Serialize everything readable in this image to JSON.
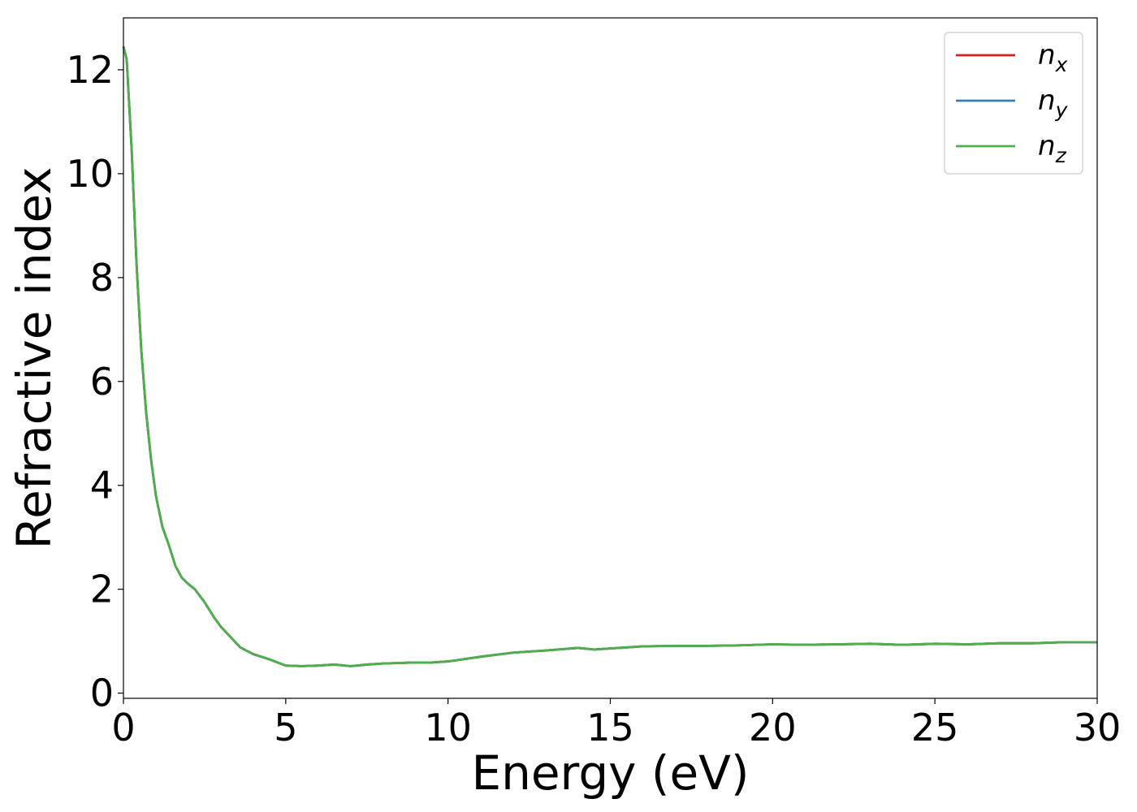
{
  "chart_data": {
    "type": "line",
    "title": "",
    "xlabel": "Energy (eV)",
    "ylabel": "Refractive index",
    "xlim": [
      0,
      30
    ],
    "ylim": [
      -0.1,
      13
    ],
    "xticks": [
      0,
      5,
      10,
      15,
      20,
      25,
      30
    ],
    "yticks": [
      0,
      2,
      4,
      6,
      8,
      10,
      12
    ],
    "grid": false,
    "legend_position": "top-right",
    "series": [
      {
        "name": "n",
        "subscript": "x",
        "color": "#e41a1c",
        "x": [
          0,
          0.1,
          0.25,
          0.4,
          0.55,
          0.7,
          0.85,
          1.0,
          1.2,
          1.4,
          1.6,
          1.8,
          2.0,
          2.2,
          2.5,
          2.8,
          3.0,
          3.3,
          3.6,
          4.0,
          4.5,
          5.0,
          5.5,
          6.0,
          6.5,
          7.0,
          7.5,
          8.0,
          8.5,
          9.0,
          9.5,
          10.0,
          11.0,
          12.0,
          13.0,
          14.0,
          14.5,
          15.0,
          16.0,
          17.0,
          18.0,
          19.0,
          20.0,
          21.0,
          22.0,
          23.0,
          24.0,
          25.0,
          26.0,
          27.0,
          28.0,
          29.0,
          30.0
        ],
        "y": [
          12.45,
          12.2,
          10.5,
          8.3,
          6.6,
          5.4,
          4.5,
          3.8,
          3.2,
          2.85,
          2.45,
          2.22,
          2.1,
          2.0,
          1.75,
          1.45,
          1.28,
          1.08,
          0.88,
          0.75,
          0.65,
          0.53,
          0.52,
          0.53,
          0.55,
          0.52,
          0.55,
          0.57,
          0.58,
          0.59,
          0.59,
          0.61,
          0.7,
          0.78,
          0.82,
          0.87,
          0.84,
          0.86,
          0.9,
          0.91,
          0.91,
          0.92,
          0.94,
          0.93,
          0.94,
          0.95,
          0.93,
          0.95,
          0.94,
          0.96,
          0.96,
          0.98,
          0.98
        ]
      },
      {
        "name": "n",
        "subscript": "y",
        "color": "#377eb8",
        "x": [
          0,
          0.1,
          0.25,
          0.4,
          0.55,
          0.7,
          0.85,
          1.0,
          1.2,
          1.4,
          1.6,
          1.8,
          2.0,
          2.2,
          2.5,
          2.8,
          3.0,
          3.3,
          3.6,
          4.0,
          4.5,
          5.0,
          5.5,
          6.0,
          6.5,
          7.0,
          7.5,
          8.0,
          8.5,
          9.0,
          9.5,
          10.0,
          11.0,
          12.0,
          13.0,
          14.0,
          14.5,
          15.0,
          16.0,
          17.0,
          18.0,
          19.0,
          20.0,
          21.0,
          22.0,
          23.0,
          24.0,
          25.0,
          26.0,
          27.0,
          28.0,
          29.0,
          30.0
        ],
        "y": [
          12.45,
          12.2,
          10.5,
          8.3,
          6.6,
          5.4,
          4.5,
          3.8,
          3.2,
          2.85,
          2.45,
          2.22,
          2.1,
          2.0,
          1.75,
          1.45,
          1.28,
          1.08,
          0.88,
          0.75,
          0.65,
          0.53,
          0.52,
          0.53,
          0.55,
          0.52,
          0.55,
          0.57,
          0.58,
          0.59,
          0.59,
          0.61,
          0.7,
          0.78,
          0.82,
          0.87,
          0.84,
          0.86,
          0.9,
          0.91,
          0.91,
          0.92,
          0.94,
          0.93,
          0.94,
          0.95,
          0.93,
          0.95,
          0.94,
          0.96,
          0.96,
          0.98,
          0.98
        ]
      },
      {
        "name": "n",
        "subscript": "z",
        "color": "#4daf4a",
        "x": [
          0,
          0.1,
          0.25,
          0.4,
          0.55,
          0.7,
          0.85,
          1.0,
          1.2,
          1.4,
          1.6,
          1.8,
          2.0,
          2.2,
          2.5,
          2.8,
          3.0,
          3.3,
          3.6,
          4.0,
          4.5,
          5.0,
          5.5,
          6.0,
          6.5,
          7.0,
          7.5,
          8.0,
          8.5,
          9.0,
          9.5,
          10.0,
          11.0,
          12.0,
          13.0,
          14.0,
          14.5,
          15.0,
          16.0,
          17.0,
          18.0,
          19.0,
          20.0,
          21.0,
          22.0,
          23.0,
          24.0,
          25.0,
          26.0,
          27.0,
          28.0,
          29.0,
          30.0
        ],
        "y": [
          12.45,
          12.2,
          10.5,
          8.3,
          6.6,
          5.4,
          4.5,
          3.8,
          3.2,
          2.85,
          2.45,
          2.22,
          2.1,
          2.0,
          1.75,
          1.45,
          1.28,
          1.08,
          0.88,
          0.75,
          0.65,
          0.53,
          0.52,
          0.53,
          0.55,
          0.52,
          0.55,
          0.57,
          0.58,
          0.59,
          0.59,
          0.61,
          0.7,
          0.78,
          0.82,
          0.87,
          0.84,
          0.86,
          0.9,
          0.91,
          0.91,
          0.92,
          0.94,
          0.93,
          0.94,
          0.95,
          0.93,
          0.95,
          0.94,
          0.96,
          0.96,
          0.98,
          0.98
        ]
      }
    ]
  }
}
